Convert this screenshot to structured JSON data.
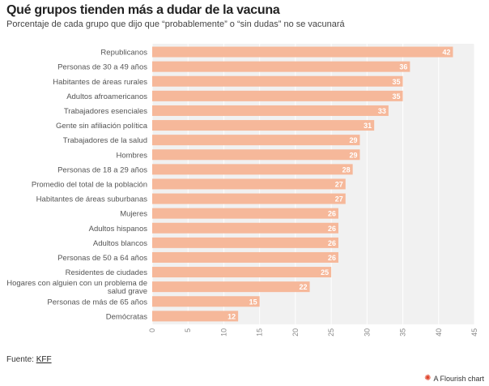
{
  "header": {
    "title": "Qué grupos tienden más a dudar de la vacuna",
    "subtitle": "Porcentaje de cada grupo que dijo que “probablemente” o “sin dudas” no se vacunará"
  },
  "footer": {
    "source_prefix": "Fuente: ",
    "source_link": "KFF",
    "credit": "A Flourish chart",
    "credit_icon": "flourish-logo-icon"
  },
  "colors": {
    "bar": "#f6b89a",
    "plot_bg": "#f1f1f1",
    "grid": "#ffffff"
  },
  "chart_data": {
    "type": "bar",
    "orientation": "horizontal",
    "categories": [
      "Republicanos",
      "Personas de 30 a 49 años",
      "Habitantes de áreas rurales",
      "Adultos afroamericanos",
      "Trabajadores esenciales",
      "Gente sin afiliación política",
      "Trabajadores de la salud",
      "Hombres",
      "Personas de 18 a 29 años",
      "Promedio del total de la población",
      "Habitantes de áreas suburbanas",
      "Mujeres",
      "Adultos hispanos",
      "Adultos blancos",
      "Personas de 50 a 64 años",
      "Residentes de ciudades",
      "Hogares con alguien con un problema de salud grave",
      "Personas de más de 65 años",
      "Demócratas"
    ],
    "values": [
      42,
      36,
      35,
      35,
      33,
      31,
      29,
      29,
      28,
      27,
      27,
      26,
      26,
      26,
      26,
      25,
      22,
      15,
      12
    ],
    "xlim": [
      0,
      45
    ],
    "xticks": [
      0,
      5,
      10,
      15,
      20,
      25,
      30,
      35,
      40,
      45
    ],
    "grid": true,
    "data_labels": true
  }
}
